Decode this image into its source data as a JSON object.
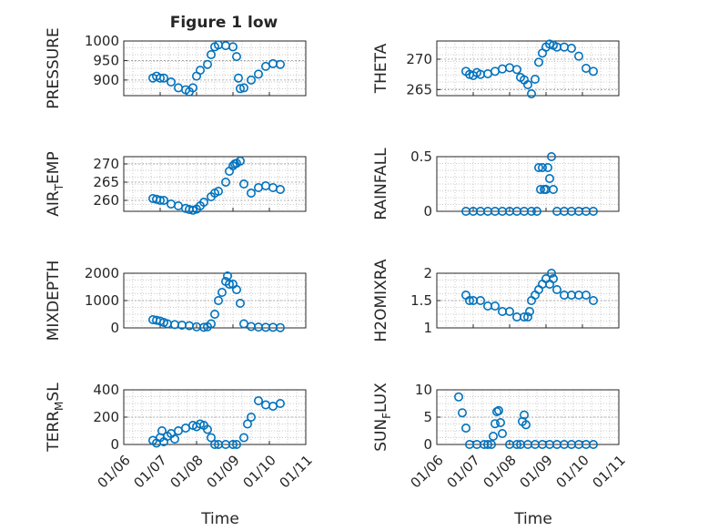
{
  "figure": {
    "title": "Figure 1 low",
    "marker_color": "#0072BD"
  },
  "chart_data": [
    {
      "id": "pressure",
      "type": "scatter",
      "title": "Figure 1 low",
      "ylabel": "PRESSURE",
      "xlabel": "",
      "ylim": [
        860,
        1000
      ],
      "yticks": [
        900,
        950,
        1000
      ],
      "xlim": [
        "01/06",
        "01/11"
      ],
      "grid": true,
      "x": [
        "01/06",
        "01/06",
        "01/06",
        "01/07",
        "01/07",
        "01/07",
        "01/07",
        "01/07",
        "01/07",
        "01/08",
        "01/08",
        "01/08",
        "01/08",
        "01/08",
        "01/08",
        "01/08",
        "01/09",
        "01/09",
        "01/09",
        "01/09",
        "01/09",
        "01/09",
        "01/10",
        "01/10",
        "01/10",
        "01/10"
      ],
      "x_days": [
        0.8,
        0.9,
        1.0,
        1.1,
        1.3,
        1.5,
        1.7,
        1.8,
        1.9,
        2.0,
        2.1,
        2.3,
        2.4,
        2.5,
        2.6,
        2.8,
        3.0,
        3.1,
        3.15,
        3.2,
        3.3,
        3.5,
        3.7,
        3.9,
        4.1,
        4.3
      ],
      "values": [
        905,
        910,
        905,
        905,
        895,
        880,
        875,
        870,
        880,
        910,
        925,
        940,
        965,
        985,
        990,
        988,
        985,
        960,
        905,
        878,
        880,
        900,
        915,
        935,
        942,
        940
      ]
    },
    {
      "id": "theta",
      "type": "scatter",
      "ylabel": "THETA",
      "xlabel": "",
      "ylim": [
        264,
        273
      ],
      "yticks": [
        265,
        270
      ],
      "xlim": [
        "01/06",
        "01/11"
      ],
      "grid": true,
      "x_days": [
        0.8,
        0.9,
        1.0,
        1.1,
        1.2,
        1.4,
        1.6,
        1.8,
        2.0,
        2.2,
        2.3,
        2.4,
        2.5,
        2.6,
        2.7,
        2.8,
        2.9,
        3.0,
        3.1,
        3.2,
        3.3,
        3.5,
        3.7,
        3.9,
        4.1,
        4.3
      ],
      "values": [
        268,
        267.5,
        267.3,
        267.8,
        267.5,
        267.6,
        268,
        268.4,
        268.6,
        268.3,
        267,
        266.6,
        265.8,
        264.3,
        266.7,
        269.5,
        271,
        272,
        272.5,
        272.3,
        272,
        272,
        271.8,
        270.5,
        268.5,
        268
      ]
    },
    {
      "id": "air_temp",
      "type": "scatter",
      "ylabel": "AIR_TEMP",
      "xlabel": "",
      "ylim": [
        257,
        272
      ],
      "yticks": [
        260,
        265,
        270
      ],
      "xlim": [
        "01/06",
        "01/11"
      ],
      "grid": true,
      "x_days": [
        0.8,
        0.9,
        1.0,
        1.1,
        1.3,
        1.5,
        1.7,
        1.8,
        1.9,
        2.0,
        2.1,
        2.2,
        2.4,
        2.5,
        2.6,
        2.8,
        2.9,
        3.0,
        3.05,
        3.1,
        3.2,
        3.3,
        3.5,
        3.7,
        3.9,
        4.1,
        4.3
      ],
      "values": [
        260.5,
        260.3,
        260,
        260,
        259,
        258.5,
        257.8,
        257.5,
        257.3,
        257.6,
        258.5,
        259.5,
        261,
        262,
        262.5,
        265,
        268,
        269.5,
        270,
        270.2,
        270.8,
        264.5,
        262,
        263.5,
        264,
        263.5,
        263
      ]
    },
    {
      "id": "rainfall",
      "type": "scatter",
      "ylabel": "RAINFALL",
      "xlabel": "",
      "ylim": [
        0,
        0.5
      ],
      "yticks": [
        0,
        0.5
      ],
      "xlim": [
        "01/06",
        "01/11"
      ],
      "grid": true,
      "x_days": [
        0.8,
        1.0,
        1.2,
        1.4,
        1.6,
        1.8,
        2.0,
        2.2,
        2.4,
        2.6,
        2.75,
        2.8,
        2.85,
        2.9,
        2.95,
        3.0,
        3.05,
        3.1,
        3.15,
        3.2,
        3.3,
        3.5,
        3.7,
        3.9,
        4.1,
        4.3
      ],
      "values": [
        0,
        0,
        0,
        0,
        0,
        0,
        0,
        0,
        0,
        0,
        0,
        0.4,
        0.2,
        0.4,
        0.2,
        0.2,
        0.4,
        0.3,
        0.5,
        0.2,
        0,
        0,
        0,
        0,
        0,
        0
      ]
    },
    {
      "id": "mixdepth",
      "type": "scatter",
      "ylabel": "MIXDEPTH",
      "xlabel": "",
      "ylim": [
        0,
        2000
      ],
      "yticks": [
        0,
        1000,
        2000
      ],
      "xlim": [
        "01/06",
        "01/11"
      ],
      "grid": true,
      "x_days": [
        0.8,
        0.9,
        1.0,
        1.1,
        1.2,
        1.4,
        1.6,
        1.8,
        2.0,
        2.2,
        2.3,
        2.4,
        2.5,
        2.6,
        2.7,
        2.8,
        2.85,
        2.9,
        3.0,
        3.1,
        3.2,
        3.3,
        3.5,
        3.7,
        3.9,
        4.1,
        4.3
      ],
      "values": [
        300,
        280,
        250,
        200,
        150,
        120,
        100,
        80,
        40,
        20,
        40,
        150,
        500,
        1000,
        1300,
        1700,
        1900,
        1600,
        1600,
        1400,
        900,
        150,
        50,
        30,
        20,
        20,
        10
      ]
    },
    {
      "id": "h2omixra",
      "type": "scatter",
      "ylabel": "H2OMIXRA",
      "xlabel": "",
      "ylim": [
        1,
        2
      ],
      "yticks": [
        1,
        1.5,
        2
      ],
      "xlim": [
        "01/06",
        "01/11"
      ],
      "grid": true,
      "x_days": [
        0.8,
        0.9,
        1.0,
        1.2,
        1.4,
        1.6,
        1.8,
        2.0,
        2.2,
        2.4,
        2.5,
        2.55,
        2.6,
        2.7,
        2.8,
        2.9,
        3.0,
        3.1,
        3.15,
        3.2,
        3.3,
        3.5,
        3.7,
        3.9,
        4.1,
        4.3
      ],
      "values": [
        1.6,
        1.5,
        1.5,
        1.5,
        1.4,
        1.4,
        1.3,
        1.3,
        1.2,
        1.2,
        1.2,
        1.3,
        1.5,
        1.6,
        1.7,
        1.8,
        1.9,
        1.8,
        2.0,
        1.9,
        1.7,
        1.6,
        1.6,
        1.6,
        1.6,
        1.5
      ]
    },
    {
      "id": "terr_msl",
      "type": "scatter",
      "ylabel": "TERR_MSL",
      "xlabel": "Time",
      "ylim": [
        0,
        400
      ],
      "yticks": [
        0,
        200,
        400
      ],
      "xlim": [
        "01/06",
        "01/11"
      ],
      "xticks": [
        "01/06",
        "01/07",
        "01/08",
        "01/09",
        "01/10",
        "01/11"
      ],
      "grid": true,
      "x_days": [
        0.8,
        0.9,
        1.0,
        1.05,
        1.1,
        1.2,
        1.3,
        1.4,
        1.5,
        1.7,
        1.9,
        2.0,
        2.1,
        2.2,
        2.3,
        2.4,
        2.5,
        2.6,
        2.8,
        3.0,
        3.1,
        3.3,
        3.4,
        3.5,
        3.7,
        3.9,
        4.1,
        4.3
      ],
      "values": [
        30,
        10,
        50,
        100,
        20,
        60,
        80,
        40,
        100,
        120,
        140,
        130,
        150,
        140,
        110,
        50,
        0,
        0,
        0,
        0,
        0,
        50,
        150,
        200,
        320,
        290,
        280,
        300
      ]
    },
    {
      "id": "sun_flux",
      "type": "scatter",
      "ylabel": "SUN_FLUX",
      "xlabel": "Time",
      "ylim": [
        0,
        10
      ],
      "yticks": [
        0,
        5,
        10
      ],
      "xlim": [
        "01/06",
        "01/11"
      ],
      "xticks": [
        "01/06",
        "01/07",
        "01/08",
        "01/09",
        "01/10",
        "01/11"
      ],
      "grid": true,
      "x_days": [
        0.6,
        0.7,
        0.8,
        0.9,
        1.1,
        1.3,
        1.4,
        1.5,
        1.55,
        1.6,
        1.65,
        1.7,
        1.75,
        1.8,
        2.0,
        2.2,
        2.3,
        2.35,
        2.4,
        2.45,
        2.5,
        2.7,
        2.9,
        3.1,
        3.3,
        3.5,
        3.7,
        3.9,
        4.1,
        4.3
      ],
      "values": [
        8.7,
        5.8,
        3.0,
        0,
        0,
        0,
        0,
        0,
        1.5,
        3.8,
        6.0,
        6.2,
        4.0,
        2.0,
        0,
        0,
        0,
        4.2,
        5.4,
        3.6,
        0,
        0,
        0,
        0,
        0,
        0,
        0,
        0,
        0,
        0
      ]
    }
  ]
}
